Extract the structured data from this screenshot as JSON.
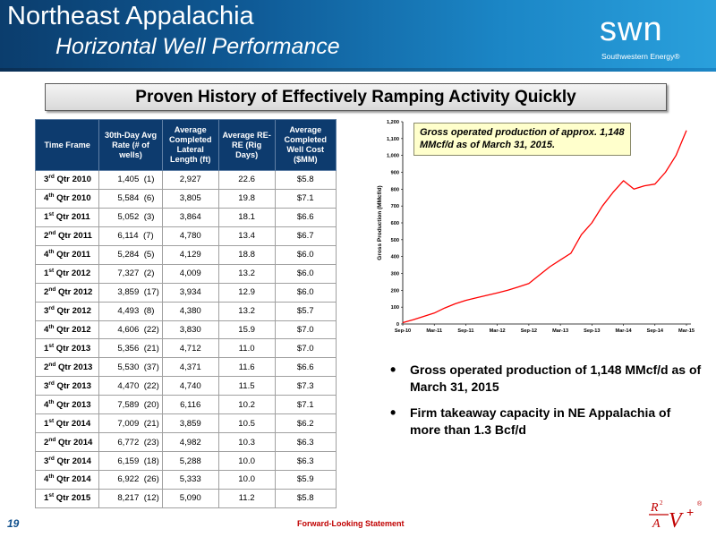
{
  "header": {
    "title": "Northeast Appalachia",
    "subtitle": "Horizontal Well Performance",
    "logo": "swn",
    "logo_sub": "Southwestern Energy®"
  },
  "banner": "Proven History of Effectively Ramping Activity Quickly",
  "table": {
    "headers": [
      "Time Frame",
      "30th-Day Avg Rate (# of wells)",
      "Average Completed Lateral Length (ft)",
      "Average RE-RE (Rig Days)",
      "Average Completed Well Cost ($MM)"
    ],
    "rows": [
      {
        "q": "3",
        "sfx": "rd",
        "rest": "Qtr 2010",
        "rate": "1,405",
        "wells": "(1)",
        "length": "2,927",
        "rigdays": "22.6",
        "cost": "$5.8"
      },
      {
        "q": "4",
        "sfx": "th",
        "rest": "Qtr 2010",
        "rate": "5,584",
        "wells": "(6)",
        "length": "3,805",
        "rigdays": "19.8",
        "cost": "$7.1"
      },
      {
        "q": "1",
        "sfx": "st",
        "rest": "Qtr 2011",
        "rate": "5,052",
        "wells": "(3)",
        "length": "3,864",
        "rigdays": "18.1",
        "cost": "$6.6"
      },
      {
        "q": "2",
        "sfx": "nd",
        "rest": "Qtr 2011",
        "rate": "6,114",
        "wells": "(7)",
        "length": "4,780",
        "rigdays": "13.4",
        "cost": "$6.7"
      },
      {
        "q": "4",
        "sfx": "th",
        "rest": "Qtr 2011",
        "rate": "5,284",
        "wells": "(5)",
        "length": "4,129",
        "rigdays": "18.8",
        "cost": "$6.0"
      },
      {
        "q": "1",
        "sfx": "st",
        "rest": "Qtr 2012",
        "rate": "7,327",
        "wells": "(2)",
        "length": "4,009",
        "rigdays": "13.2",
        "cost": "$6.0"
      },
      {
        "q": "2",
        "sfx": "nd",
        "rest": "Qtr 2012",
        "rate": "3,859",
        "wells": "(17)",
        "length": "3,934",
        "rigdays": "12.9",
        "cost": "$6.0"
      },
      {
        "q": "3",
        "sfx": "rd",
        "rest": "Qtr 2012",
        "rate": "4,493",
        "wells": "(8)",
        "length": "4,380",
        "rigdays": "13.2",
        "cost": "$5.7"
      },
      {
        "q": "4",
        "sfx": "th",
        "rest": "Qtr 2012",
        "rate": "4,606",
        "wells": "(22)",
        "length": "3,830",
        "rigdays": "15.9",
        "cost": "$7.0"
      },
      {
        "q": "1",
        "sfx": "st",
        "rest": "Qtr 2013",
        "rate": "5,356",
        "wells": "(21)",
        "length": "4,712",
        "rigdays": "11.0",
        "cost": "$7.0"
      },
      {
        "q": "2",
        "sfx": "nd",
        "rest": "Qtr 2013",
        "rate": "5,530",
        "wells": "(37)",
        "length": "4,371",
        "rigdays": "11.6",
        "cost": "$6.6"
      },
      {
        "q": "3",
        "sfx": "rd",
        "rest": "Qtr 2013",
        "rate": "4,470",
        "wells": "(22)",
        "length": "4,740",
        "rigdays": "11.5",
        "cost": "$7.3"
      },
      {
        "q": "4",
        "sfx": "th",
        "rest": "Qtr 2013",
        "rate": "7,589",
        "wells": "(20)",
        "length": "6,116",
        "rigdays": "10.2",
        "cost": "$7.1"
      },
      {
        "q": "1",
        "sfx": "st",
        "rest": "Qtr 2014",
        "rate": "7,009",
        "wells": "(21)",
        "length": "3,859",
        "rigdays": "10.5",
        "cost": "$6.2"
      },
      {
        "q": "2",
        "sfx": "nd",
        "rest": "Qtr 2014",
        "rate": "6,772",
        "wells": "(23)",
        "length": "4,982",
        "rigdays": "10.3",
        "cost": "$6.3"
      },
      {
        "q": "3",
        "sfx": "rd",
        "rest": "Qtr 2014",
        "rate": "6,159",
        "wells": "(18)",
        "length": "5,288",
        "rigdays": "10.0",
        "cost": "$6.3"
      },
      {
        "q": "4",
        "sfx": "th",
        "rest": "Qtr 2014",
        "rate": "6,922",
        "wells": "(26)",
        "length": "5,333",
        "rigdays": "10.0",
        "cost": "$5.9"
      },
      {
        "q": "1",
        "sfx": "st",
        "rest": "Qtr 2015",
        "rate": "8,217",
        "wells": "(12)",
        "length": "5,090",
        "rigdays": "11.2",
        "cost": "$5.8"
      }
    ]
  },
  "chart_data": {
    "type": "line",
    "title": "",
    "xlabel": "",
    "ylabel": "Gross Production (MMcf/d)",
    "ylim": [
      0,
      1200
    ],
    "yticks": [
      "0",
      "100",
      "200",
      "300",
      "400",
      "500",
      "600",
      "700",
      "800",
      "900",
      "1,000",
      "1,100",
      "1,200"
    ],
    "xticks": [
      "Sep-10",
      "Mar-11",
      "Sep-11",
      "Mar-12",
      "Sep-12",
      "Mar-13",
      "Sep-13",
      "Mar-14",
      "Sep-14",
      "Mar-15"
    ],
    "grid": false,
    "series_color": "#ff0000",
    "series": [
      {
        "x": [
          "Sep-10",
          "Nov-10",
          "Jan-11",
          "Mar-11",
          "May-11",
          "Jul-11",
          "Sep-11",
          "Nov-11",
          "Jan-12",
          "Mar-12",
          "May-12",
          "Jul-12",
          "Sep-12",
          "Nov-12",
          "Jan-13",
          "Mar-13",
          "May-13",
          "Jul-13",
          "Sep-13",
          "Nov-13",
          "Jan-14",
          "Mar-14",
          "May-14",
          "Jul-14",
          "Sep-14",
          "Nov-14",
          "Jan-15",
          "Mar-15"
        ],
        "values": [
          8,
          25,
          45,
          65,
          95,
          120,
          140,
          155,
          170,
          185,
          200,
          220,
          240,
          290,
          340,
          380,
          420,
          530,
          600,
          700,
          780,
          850,
          800,
          820,
          830,
          900,
          1000,
          1148
        ]
      }
    ],
    "annotation": "Gross operated production of approx. 1,148 MMcf/d as of March 31, 2015."
  },
  "bullets": [
    "Gross operated production of 1,148 MMcf/d as of March 31, 2015",
    "Firm takeaway capacity in NE Appalachia of more than 1.3 Bcf/d"
  ],
  "footer": {
    "page": "19",
    "link": "Forward-Looking Statement",
    "mark_top": "R",
    "mark_sup": "2",
    "mark_bottom": "A",
    "mark_right": "V",
    "mark_plus": "+",
    "mark_reg": "®"
  }
}
